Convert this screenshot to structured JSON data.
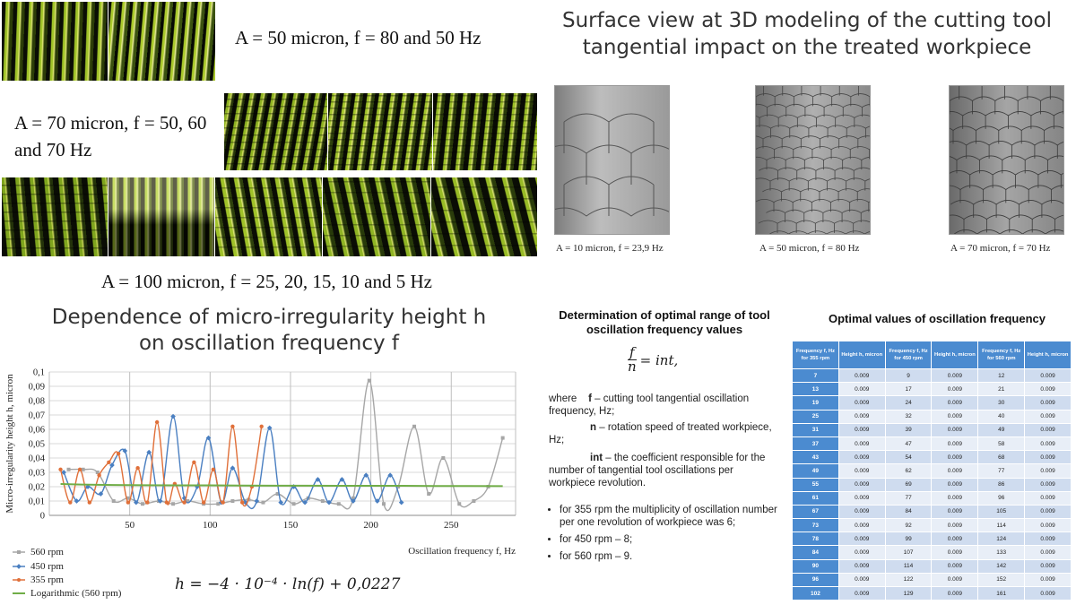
{
  "photo_captions": {
    "a50": "A = 50 micron, f = 80 and 50 Hz",
    "a70": "A = 70 micron, f = 50, 60 and 70 Hz",
    "a100": "A = 100 micron, f = 25, 20, 15, 10 and 5 Hz"
  },
  "model_section": {
    "title": "Surface view at 3D modeling of the cutting tool tangential impact on the treated workpiece",
    "captions": [
      "A = 10 micron, f = 23,9 Hz",
      "A = 50 micron, f = 80 Hz",
      "A = 70 micron, f = 70 Hz"
    ]
  },
  "chart_data": {
    "type": "line",
    "title": "Dependence of micro-irregularity height h on oscillation frequency f",
    "ylabel": "Micro-irregularity height h, micron",
    "xlabel": "Oscillation frequency f, Hz",
    "xlim": [
      0,
      290
    ],
    "ylim": [
      0,
      0.1
    ],
    "xticks": [
      "50",
      "100",
      "150",
      "200",
      "250"
    ],
    "xtick_values": [
      50,
      100,
      150,
      200,
      250
    ],
    "yticks": [
      "0",
      "0,01",
      "0,02",
      "0,03",
      "0,04",
      "0,05",
      "0,06",
      "0,07",
      "0,08",
      "0,09",
      "0,1"
    ],
    "grid": true,
    "legend_position": "bottom-left",
    "series": [
      {
        "name": "560 rpm",
        "color": "#a6a6a6",
        "marker": "square",
        "x": [
          12,
          21,
          30,
          40,
          49,
          58,
          68,
          77,
          86,
          96,
          105,
          114,
          124,
          133,
          142,
          152,
          161,
          170,
          180,
          189,
          199,
          208,
          217,
          227,
          236,
          245,
          255,
          264,
          273,
          282
        ],
        "y": [
          0.032,
          0.032,
          0.03,
          0.01,
          0.012,
          0.008,
          0.01,
          0.008,
          0.01,
          0.008,
          0.008,
          0.01,
          0.011,
          0.009,
          0.015,
          0.008,
          0.012,
          0.01,
          0.008,
          0.012,
          0.094,
          0.008,
          0.02,
          0.062,
          0.015,
          0.04,
          0.008,
          0.01,
          0.02,
          0.054
        ]
      },
      {
        "name": "450 rpm",
        "color": "#4a7fc1",
        "marker": "diamond",
        "x": [
          9,
          17,
          24,
          32,
          39,
          47,
          54,
          62,
          69,
          77,
          84,
          92,
          99,
          107,
          114,
          122,
          129,
          137,
          144,
          152,
          159,
          167,
          174,
          182,
          189,
          197,
          204,
          212,
          219
        ],
        "y": [
          0.03,
          0.01,
          0.02,
          0.015,
          0.035,
          0.045,
          0.009,
          0.044,
          0.01,
          0.069,
          0.012,
          0.02,
          0.054,
          0.009,
          0.033,
          0.009,
          0.01,
          0.061,
          0.009,
          0.02,
          0.009,
          0.025,
          0.009,
          0.025,
          0.01,
          0.028,
          0.01,
          0.028,
          0.009
        ]
      },
      {
        "name": "355 rpm",
        "color": "#e0703a",
        "marker": "circle",
        "x": [
          7,
          13,
          19,
          25,
          31,
          37,
          43,
          49,
          55,
          61,
          67,
          73,
          78,
          84,
          90,
          96,
          102,
          108,
          114,
          120,
          126,
          132
        ],
        "y": [
          0.032,
          0.009,
          0.032,
          0.009,
          0.028,
          0.037,
          0.043,
          0.009,
          0.033,
          0.009,
          0.065,
          0.009,
          0.022,
          0.009,
          0.037,
          0.009,
          0.032,
          0.009,
          0.062,
          0.009,
          0.02,
          0.062
        ]
      },
      {
        "name": "Logarithmic (560 rpm)",
        "color": "#70ad47",
        "marker": "none",
        "x": [
          7,
          20,
          40,
          60,
          80,
          100,
          120,
          140,
          160,
          180,
          200,
          220,
          240,
          260,
          282
        ],
        "y": [
          0.0219,
          0.0215,
          0.0212,
          0.021,
          0.0209,
          0.0209,
          0.0208,
          0.0207,
          0.0207,
          0.0206,
          0.0206,
          0.0206,
          0.0205,
          0.0205,
          0.0204
        ]
      }
    ],
    "trend_formula": "h = −4 · 10⁻⁴ · ln(f) + 0,0227"
  },
  "determination": {
    "title": "Determination of optimal range of tool oscillation frequency values",
    "formula_num": "f",
    "formula_den": "n",
    "formula_rhs": "= int,",
    "where": "where",
    "f_sym": "f",
    "f_desc": " – cutting tool tangential oscillation frequency, Hz;",
    "n_sym": "n",
    "n_desc": " – rotation speed of treated workpiece, Hz;",
    "int_sym": "int",
    "int_desc": " – the coefficient responsible for the number of tangential tool oscillations per workpiece revolution.",
    "bullets": [
      "for 355 rpm the multiplicity of oscillation number per one revolution of workpiece was 6;",
      "for 450 rpm – 8;",
      "for 560 rpm – 9."
    ]
  },
  "optimal_table": {
    "title": "Optimal values of oscillation frequency",
    "headers": [
      "Frequency f, Hz for 355 rpm",
      "Height h, micron",
      "Frequency f, Hz for 450 rpm",
      "Height h, micron",
      "Frequency f, Hz for 560 rpm",
      "Height h, micron"
    ],
    "rows": [
      [
        "7",
        "0.009",
        "9",
        "0.009",
        "12",
        "0.009"
      ],
      [
        "13",
        "0.009",
        "17",
        "0.009",
        "21",
        "0.009"
      ],
      [
        "19",
        "0.009",
        "24",
        "0.009",
        "30",
        "0.009"
      ],
      [
        "25",
        "0.009",
        "32",
        "0.009",
        "40",
        "0.009"
      ],
      [
        "31",
        "0.009",
        "39",
        "0.009",
        "49",
        "0.009"
      ],
      [
        "37",
        "0.009",
        "47",
        "0.009",
        "58",
        "0.009"
      ],
      [
        "43",
        "0.009",
        "54",
        "0.009",
        "68",
        "0.009"
      ],
      [
        "49",
        "0.009",
        "62",
        "0.009",
        "77",
        "0.009"
      ],
      [
        "55",
        "0.009",
        "69",
        "0.009",
        "86",
        "0.009"
      ],
      [
        "61",
        "0.009",
        "77",
        "0.009",
        "96",
        "0.009"
      ],
      [
        "67",
        "0.009",
        "84",
        "0.009",
        "105",
        "0.009"
      ],
      [
        "73",
        "0.009",
        "92",
        "0.009",
        "114",
        "0.009"
      ],
      [
        "78",
        "0.009",
        "99",
        "0.009",
        "124",
        "0.009"
      ],
      [
        "84",
        "0.009",
        "107",
        "0.009",
        "133",
        "0.009"
      ],
      [
        "90",
        "0.009",
        "114",
        "0.009",
        "142",
        "0.009"
      ],
      [
        "96",
        "0.009",
        "122",
        "0.009",
        "152",
        "0.009"
      ],
      [
        "102",
        "0.009",
        "129",
        "0.009",
        "161",
        "0.009"
      ]
    ]
  },
  "colors": {
    "accent_blue": "#4b8bd0",
    "photo_green": "#9bbf2a"
  }
}
